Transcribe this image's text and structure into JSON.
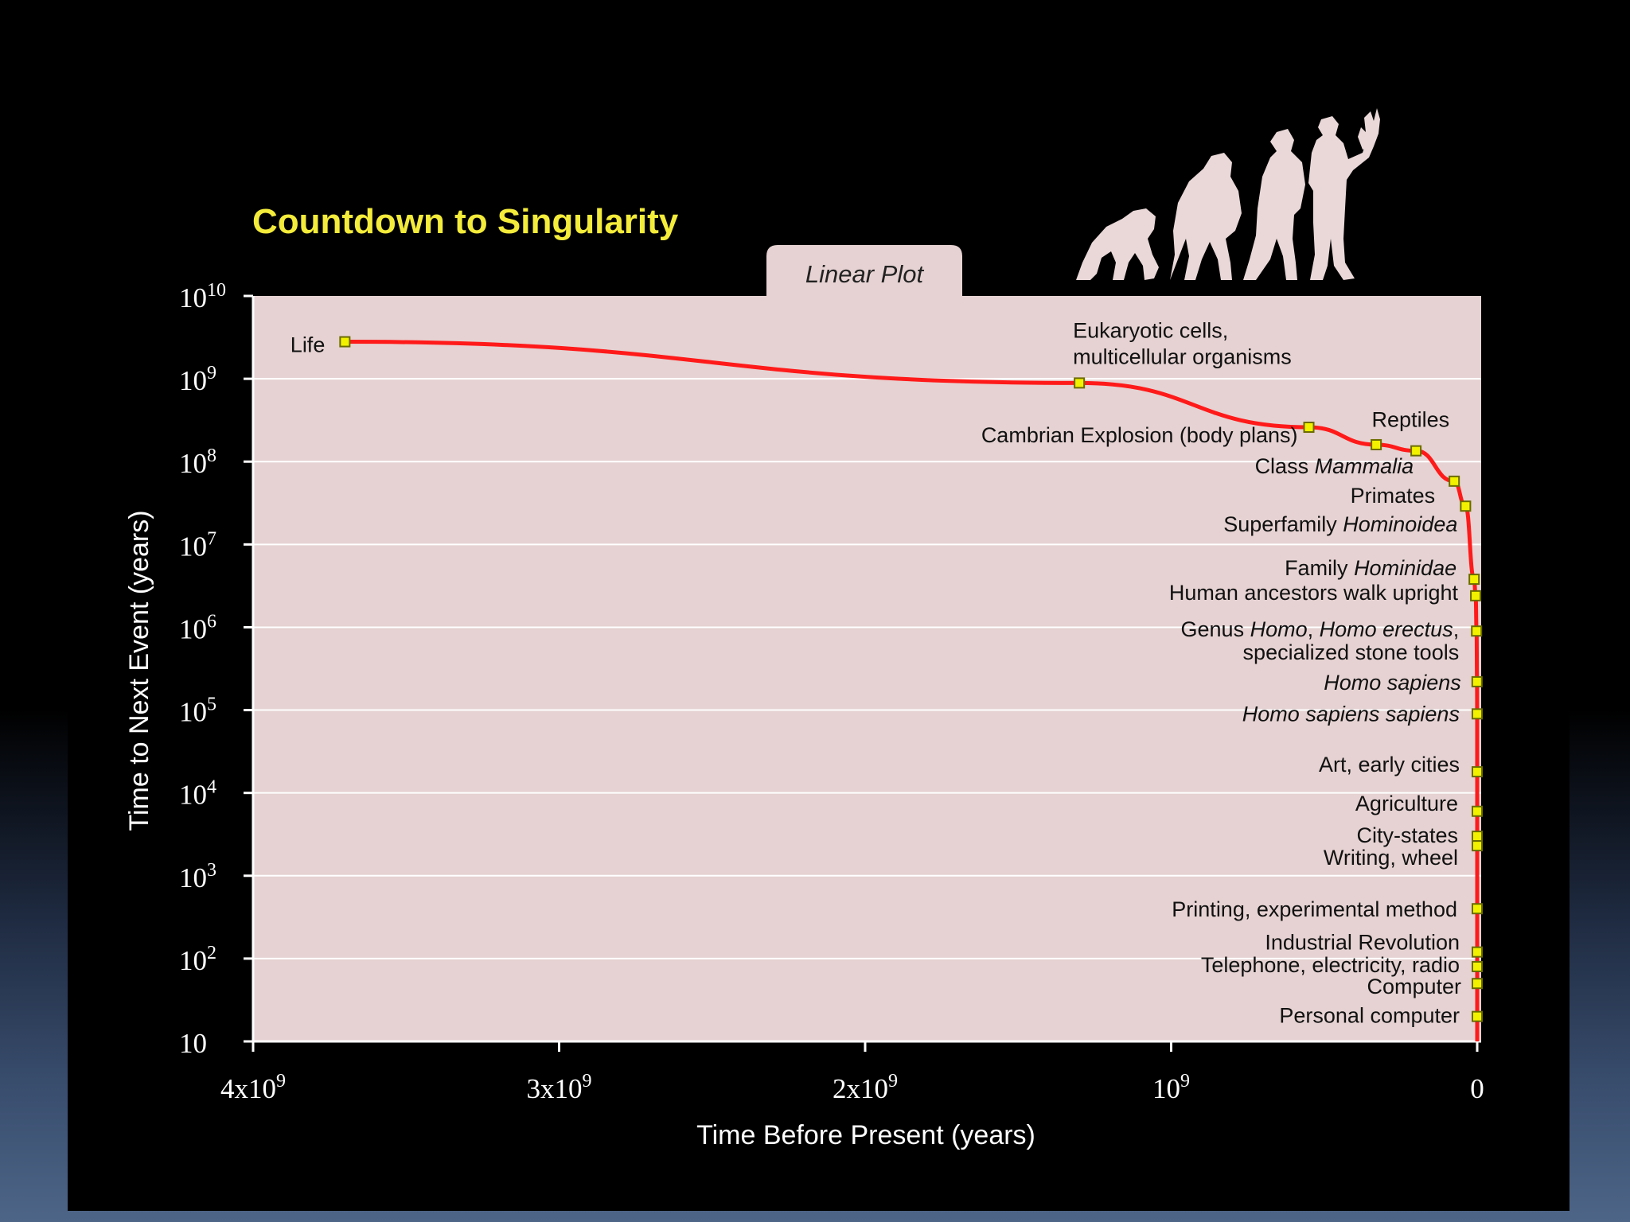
{
  "chart_data": {
    "type": "line",
    "title": "Countdown to Singularity",
    "tab_label": "Linear Plot",
    "xlabel": "Time Before Present (years)",
    "ylabel": "Time to Next Event (years)",
    "xlim": [
      4000000000,
      0
    ],
    "ylim_log10": [
      1,
      10
    ],
    "y_scale": "log",
    "grid": true,
    "colors": {
      "line": "#ff1a1a",
      "marker_fill": "#f2f200",
      "plot_bg": "#e6d2d2",
      "title": "#f4ec3a"
    },
    "x_ticks": [
      {
        "value": 4000000000,
        "base": "4x10",
        "exp": "9"
      },
      {
        "value": 3000000000,
        "base": "3x10",
        "exp": "9"
      },
      {
        "value": 2000000000,
        "base": "2x10",
        "exp": "9"
      },
      {
        "value": 1000000000,
        "base": "10",
        "exp": "9"
      },
      {
        "value": 0,
        "base": "0",
        "exp": ""
      }
    ],
    "y_ticks": [
      {
        "value": 10000000000,
        "base": "10",
        "exp": "10"
      },
      {
        "value": 1000000000,
        "base": "10",
        "exp": "9"
      },
      {
        "value": 100000000,
        "base": "10",
        "exp": "8"
      },
      {
        "value": 10000000,
        "base": "10",
        "exp": "7"
      },
      {
        "value": 1000000,
        "base": "10",
        "exp": "6"
      },
      {
        "value": 100000,
        "base": "10",
        "exp": "5"
      },
      {
        "value": 10000,
        "base": "10",
        "exp": "4"
      },
      {
        "value": 1000,
        "base": "10",
        "exp": "3"
      },
      {
        "value": 100,
        "base": "10",
        "exp": "2"
      },
      {
        "value": 10,
        "base": "10",
        "exp": ""
      }
    ],
    "points": [
      {
        "x": 3700000000,
        "y": 2800000000,
        "label": [
          [
            [
              "Life",
              false
            ]
          ]
        ]
      },
      {
        "x": 1300000000,
        "y": 890000000,
        "label": [
          [
            [
              "Eukaryotic cells,",
              false
            ]
          ],
          [
            [
              "multicellular organisms",
              false
            ]
          ]
        ]
      },
      {
        "x": 550000000,
        "y": 260000000,
        "label": [
          [
            [
              "Cambrian Explosion (body plans)",
              false
            ]
          ]
        ]
      },
      {
        "x": 330000000,
        "y": 160000000,
        "label": [
          [
            [
              "Class ",
              false
            ],
            [
              "Mammalia",
              true
            ]
          ]
        ]
      },
      {
        "x": 200000000,
        "y": 135000000,
        "label": [
          [
            [
              "Reptiles",
              false
            ]
          ]
        ]
      },
      {
        "x": 75000000,
        "y": 58000000,
        "label": [
          [
            [
              "Primates",
              false
            ]
          ]
        ]
      },
      {
        "x": 38000000,
        "y": 29000000,
        "label": [
          [
            [
              "Superfamily ",
              false
            ],
            [
              "Hominoidea",
              true
            ]
          ]
        ]
      },
      {
        "x": 10000000,
        "y": 3800000,
        "label": [
          [
            [
              "Family ",
              false
            ],
            [
              "Hominidae",
              true
            ]
          ]
        ]
      },
      {
        "x": 5000000,
        "y": 2400000,
        "label": [
          [
            [
              "Human ancestors walk upright",
              false
            ]
          ]
        ]
      },
      {
        "x": 2000000,
        "y": 900000,
        "label": [
          [
            [
              "Genus ",
              false
            ],
            [
              "Homo",
              true
            ],
            [
              ", ",
              false
            ],
            [
              "Homo erectus",
              true
            ],
            [
              ",",
              false
            ]
          ],
          [
            [
              "specialized stone tools",
              false
            ]
          ]
        ]
      },
      {
        "x": 500000,
        "y": 220000,
        "label": [
          [
            [
              "Homo sapiens",
              true
            ]
          ]
        ]
      },
      {
        "x": 100000,
        "y": 90000,
        "label": [
          [
            [
              "Homo sapiens sapiens",
              true
            ]
          ]
        ]
      },
      {
        "x": 30000,
        "y": 18000,
        "label": [
          [
            [
              "Art, early cities",
              false
            ]
          ]
        ]
      },
      {
        "x": 10000,
        "y": 6000,
        "label": [
          [
            [
              "Agriculture",
              false
            ]
          ]
        ]
      },
      {
        "x": 5000,
        "y": 3000,
        "label": [
          [
            [
              "City-states",
              false
            ]
          ]
        ]
      },
      {
        "x": 4500,
        "y": 2300,
        "label": [
          [
            [
              "Writing, wheel",
              false
            ]
          ]
        ]
      },
      {
        "x": 550,
        "y": 400,
        "label": [
          [
            [
              "Printing, experimental method",
              false
            ]
          ]
        ]
      },
      {
        "x": 250,
        "y": 120,
        "label": [
          [
            [
              "Industrial Revolution",
              false
            ]
          ]
        ]
      },
      {
        "x": 130,
        "y": 80,
        "label": [
          [
            [
              "Telephone,  electricity, radio",
              false
            ]
          ]
        ]
      },
      {
        "x": 70,
        "y": 50,
        "label": [
          [
            [
              "Computer",
              false
            ]
          ]
        ]
      },
      {
        "x": 30,
        "y": 20,
        "label": [
          [
            [
              "Personal computer",
              false
            ]
          ]
        ]
      }
    ]
  }
}
